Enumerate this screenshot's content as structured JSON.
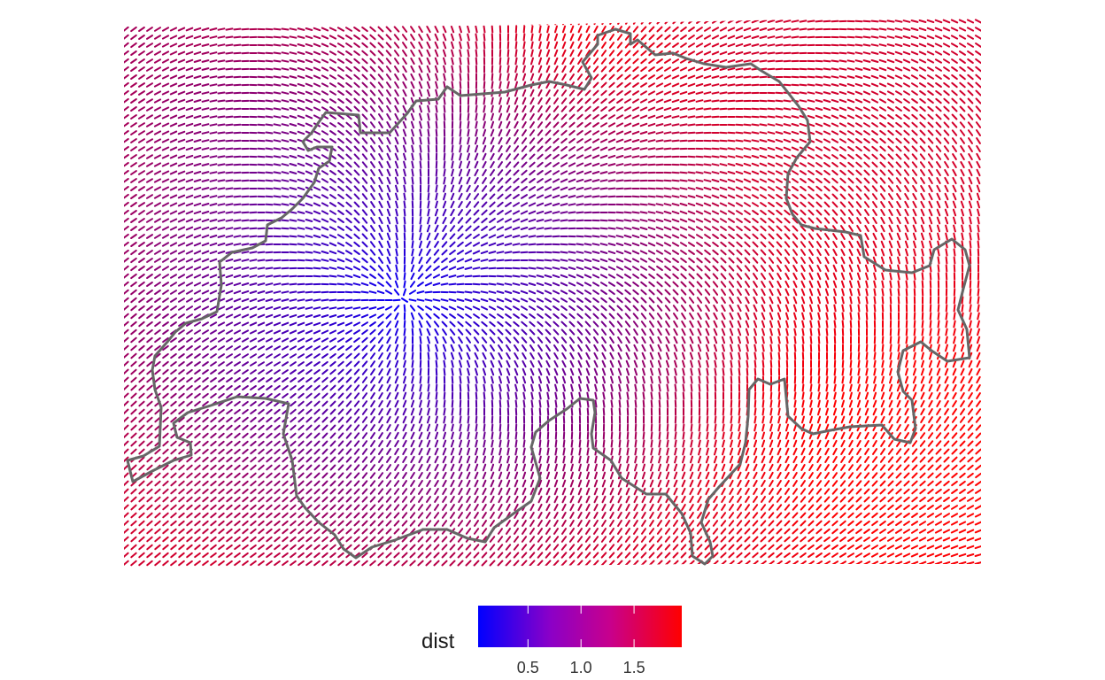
{
  "map": {
    "field_variable": "dist",
    "color_low": "#0000ff",
    "color_high": "#ff0000",
    "border_color": "#666666",
    "dist_range": [
      0,
      1.95
    ],
    "minimum_location": "central-west of region",
    "maximum_location": "south-east of region"
  },
  "legend": {
    "title": "dist",
    "limits": [
      0.03,
      1.95
    ],
    "ticks": [
      {
        "value": 0.5,
        "label": "0.5"
      },
      {
        "value": 1.0,
        "label": "1.0"
      },
      {
        "value": 1.5,
        "label": "1.5"
      }
    ]
  }
}
